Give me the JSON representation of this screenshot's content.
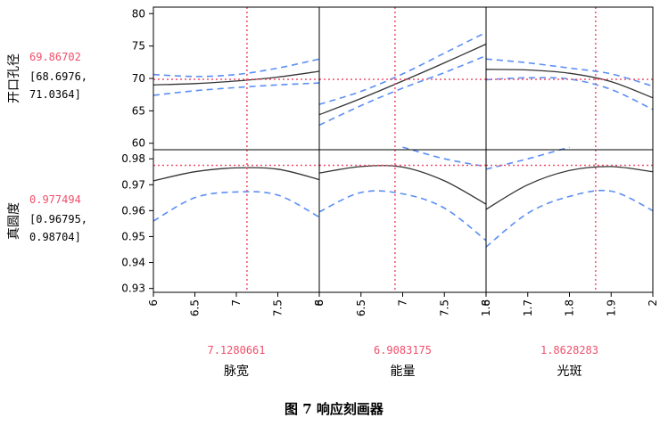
{
  "chart_data": {
    "type": "line",
    "title": "",
    "factors": [
      {
        "name": "脉宽",
        "current_value": "7.1280661",
        "current": 7.1280661,
        "range": [
          6,
          8
        ],
        "ticks": [
          "6",
          "6.5",
          "7",
          "7.5",
          "8"
        ]
      },
      {
        "name": "能量",
        "current_value": "6.9083175",
        "current": 6.9083175,
        "range": [
          6,
          8
        ],
        "ticks": [
          "6",
          "6.5",
          "7",
          "7.5",
          "8"
        ]
      },
      {
        "name": "光斑",
        "current_value": "1.8628283",
        "current": 1.8628283,
        "range": [
          1.6,
          2
        ],
        "ticks": [
          "1.6",
          "1.7",
          "1.8",
          "1.9",
          "2"
        ]
      }
    ],
    "responses": [
      {
        "name": "开口孔径",
        "predicted": "69.86702",
        "interval_line1": "[68.6976,",
        "interval_line2": "71.0364]",
        "ylim": [
          59,
          81
        ],
        "yticks": [
          60,
          65,
          70,
          75,
          80
        ],
        "ytick_labels": [
          "60",
          "65",
          "70",
          "75",
          "80"
        ],
        "current_y": 69.86702,
        "panels": [
          {
            "x": [
              6,
              6.5,
              7,
              7.5,
              8
            ],
            "mean": [
              69.0,
              69.2,
              69.6,
              70.2,
              71.1
            ],
            "upper": [
              70.6,
              70.3,
              70.6,
              71.6,
              73.0
            ],
            "lower": [
              67.4,
              68.1,
              68.6,
              69.0,
              69.3
            ]
          },
          {
            "x": [
              6,
              6.5,
              7,
              7.5,
              8
            ],
            "mean": [
              64.4,
              66.9,
              69.6,
              72.4,
              75.3
            ],
            "upper": [
              66.0,
              68.0,
              70.7,
              73.9,
              77.1
            ],
            "lower": [
              62.8,
              65.8,
              68.5,
              70.9,
              73.5
            ]
          },
          {
            "x": [
              1.6,
              1.7,
              1.8,
              1.9,
              2.0
            ],
            "mean": [
              71.4,
              71.3,
              70.8,
              69.5,
              67.0
            ],
            "upper": [
              73.0,
              72.4,
              71.6,
              70.7,
              68.8
            ],
            "lower": [
              69.8,
              70.1,
              69.9,
              68.3,
              65.2
            ]
          }
        ]
      },
      {
        "name": "真圆度",
        "predicted": "0.977494",
        "interval_line1": "[0.96795,",
        "interval_line2": "0.98704]",
        "ylim": [
          0.9285,
          0.9835
        ],
        "yticks": [
          0.93,
          0.94,
          0.95,
          0.96,
          0.97,
          0.98
        ],
        "ytick_labels": [
          "0.93",
          "0.94",
          "0.95",
          "0.96",
          "0.97",
          "0.98"
        ],
        "current_y": 0.977494,
        "panels": [
          {
            "x": [
              6,
              6.5,
              7,
              7.5,
              8
            ],
            "mean": [
              0.9715,
              0.975,
              0.9765,
              0.976,
              0.972
            ],
            "upper": null,
            "lower": [
              0.956,
              0.965,
              0.9672,
              0.966,
              0.9575
            ]
          },
          {
            "x": [
              6,
              6.5,
              7,
              7.5,
              8
            ],
            "mean": [
              0.9745,
              0.977,
              0.9768,
              0.9715,
              0.9625
            ],
            "upper": [
              null,
              null,
              0.9845,
              0.98,
              0.977
            ],
            "lower": [
              0.9595,
              0.967,
              0.9665,
              0.961,
              0.9485
            ]
          },
          {
            "x": [
              1.6,
              1.7,
              1.8,
              1.9,
              2.0
            ],
            "mean": [
              0.9605,
              0.97,
              0.9755,
              0.977,
              0.975
            ],
            "upper": [
              0.976,
              0.98,
              0.9845,
              null,
              null
            ],
            "lower": [
              0.946,
              0.959,
              0.9655,
              0.9675,
              0.96
            ]
          }
        ]
      }
    ],
    "caption": "图 7 响应刻画器",
    "colors": {
      "mean": "#333333",
      "ci": "#5b8ef5",
      "reference": "#f04f6b",
      "value_text": "#f04f6b"
    },
    "grid": false
  }
}
